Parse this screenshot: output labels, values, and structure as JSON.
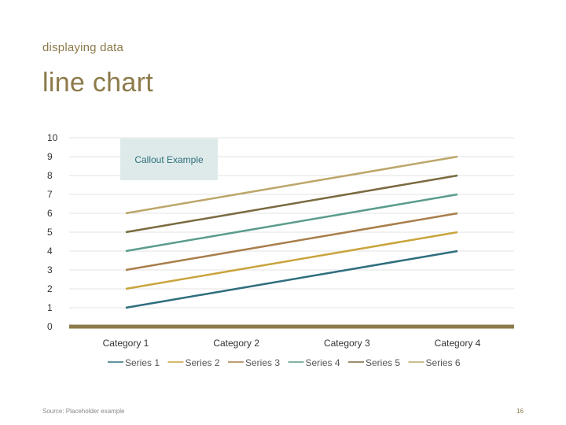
{
  "slide": {
    "subtitle": "displaying data",
    "title": "line chart",
    "source": "Source: Placeholder example",
    "page_number": "16"
  },
  "colors": {
    "text_accent": "#8c7a4a",
    "axis": "#8c7a4a",
    "grid": "#e3e3e3",
    "callout_bg": "#deeaea",
    "callout_text": "#2f6f7a"
  },
  "chart_data": {
    "type": "line",
    "categories": [
      "Category 1",
      "Category 2",
      "Category 3",
      "Category 4"
    ],
    "ylim": [
      0,
      10
    ],
    "yticks": [
      0,
      1,
      2,
      3,
      4,
      5,
      6,
      7,
      8,
      9,
      10
    ],
    "grid": true,
    "legend": "bottom",
    "series": [
      {
        "name": "Series 1",
        "color": "#2e6e7e",
        "values": [
          1,
          2,
          3,
          4
        ]
      },
      {
        "name": "Series 2",
        "color": "#c9a43c",
        "values": [
          2,
          3,
          4,
          5
        ]
      },
      {
        "name": "Series 3",
        "color": "#a87e4a",
        "values": [
          3,
          4,
          5,
          6
        ]
      },
      {
        "name": "Series 4",
        "color": "#5a9c8c",
        "values": [
          4,
          5,
          6,
          7
        ]
      },
      {
        "name": "Series 5",
        "color": "#7a6a40",
        "values": [
          5,
          6,
          7,
          8
        ]
      },
      {
        "name": "Series 6",
        "color": "#bca66a",
        "values": [
          6,
          7,
          8,
          9
        ]
      }
    ],
    "annotations": [
      {
        "text": "Callout Example"
      }
    ]
  }
}
